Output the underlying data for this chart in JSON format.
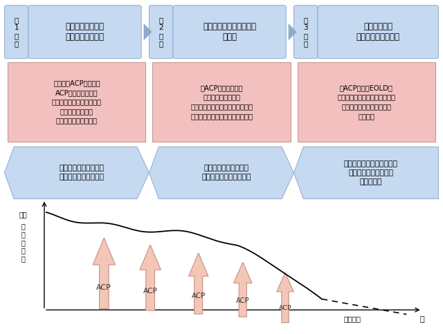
{
  "bg_color": "#ffffff",
  "stage_box_color": "#c5d9f1",
  "stage_box_edge": "#8eaacc",
  "pink_box_color": "#f2c0bf",
  "pink_box_edge": "#c0908e",
  "blue_arrow_color": "#c5d9f1",
  "blue_arrow_edge": "#8eaacc",
  "acp_arrow_color": "#f4c6b8",
  "acp_arrow_edge": "#c49080",
  "stages": [
    {
      "label": "第\n1\n段\n階",
      "title": "健康な全ての成人\n生や死を考える人"
    },
    {
      "label": "第\n2\n段\n階",
      "title": "疾病や障がいをもつ人、\n高齢者"
    },
    {
      "label": "第\n3\n段\n階",
      "title": "重篤な病状、\n人生の最終段階の人"
    }
  ],
  "pink_boxes": [
    "【啓発とACPの経験】\nACPの目的・必要性\n死生観、人生観、生き方を\n考える対話の経験\nもしもの時の意向など",
    "【ACPの積み重ね】\n自分の生き方の再考\n個別の状況に応じた医療やケア、\n人生の最終段階に備えた意向など",
    "【ACP継続・EOLD】\n人生の最終段階の医療、ケア、\n療養生活の意向・代弁者の\n選定など"
  ],
  "blue_arrows": [
    "市町行政職、保健師、\n地域ボランティアなど",
    "退院支援・ケアマネ、\n診療所、訪問看護師など",
    "病院、救急、高齢者施設、\n在宅医師や看護師等の\n支援チーム"
  ],
  "ylabel_top": "良好",
  "ylabel_main": "健\n康\nの\n状\n態",
  "xlabel_time": "時間経過",
  "xlabel_death": "死"
}
